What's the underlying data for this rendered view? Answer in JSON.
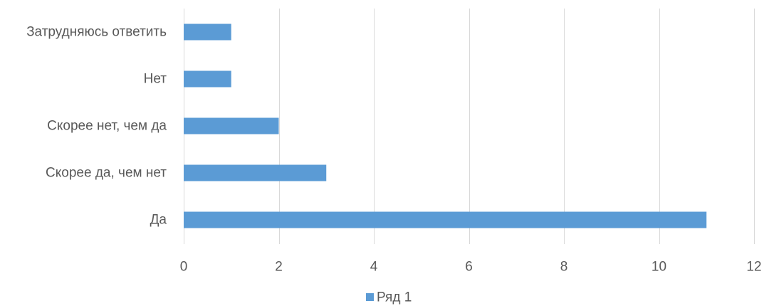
{
  "chart_data": {
    "type": "bar",
    "orientation": "horizontal",
    "title": "",
    "xlabel": "",
    "ylabel": "",
    "categories": [
      "Затрудняюсь ответить",
      "Нет",
      "Скорее нет, чем да",
      "Скорее да, чем нет",
      "Да"
    ],
    "series": [
      {
        "name": "Ряд 1",
        "values": [
          1,
          1,
          2,
          3,
          11
        ],
        "color": "#5b9bd5"
      }
    ],
    "xlim": [
      0,
      12
    ],
    "x_ticks": [
      0,
      2,
      4,
      6,
      8,
      10,
      12
    ],
    "x_tick_labels": [
      "0",
      "2",
      "4",
      "6",
      "8",
      "10",
      "12"
    ],
    "grid": "vertical",
    "legend": "bottom",
    "gridline_color": "#d9d9d9",
    "text_color": "#595959"
  }
}
